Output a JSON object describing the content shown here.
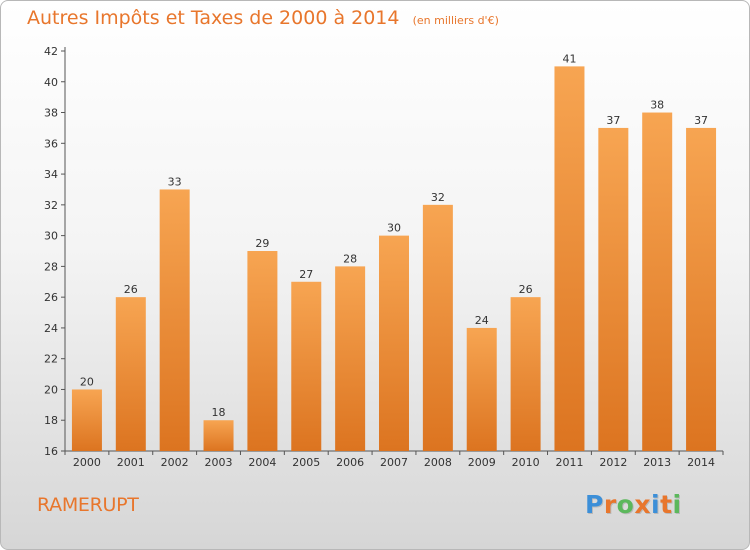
{
  "chart_data": {
    "type": "bar",
    "title": "Autres Impôts et Taxes de 2000 à 2014",
    "subtitle": "(en milliers d'€)",
    "categories": [
      "2000",
      "2001",
      "2002",
      "2003",
      "2004",
      "2005",
      "2006",
      "2007",
      "2008",
      "2009",
      "2010",
      "2011",
      "2012",
      "2013",
      "2014"
    ],
    "values": [
      20,
      26,
      33,
      18,
      29,
      27,
      28,
      30,
      32,
      24,
      26,
      41,
      37,
      38,
      37
    ],
    "ylim": [
      16,
      42
    ],
    "yticks": [
      16,
      18,
      20,
      22,
      24,
      26,
      28,
      30,
      32,
      34,
      36,
      38,
      40,
      42
    ],
    "grid": false,
    "bar_color": "#f29a43",
    "bar_color_dark": "#d87526"
  },
  "footer": {
    "commune": "RAMERUPT",
    "brand": "Proxiti",
    "brand_colors": [
      "#3c8fd8",
      "#e8762c",
      "#5cb85c",
      "#e8762c",
      "#3c8fd8",
      "#e8762c",
      "#5cb85c"
    ]
  }
}
